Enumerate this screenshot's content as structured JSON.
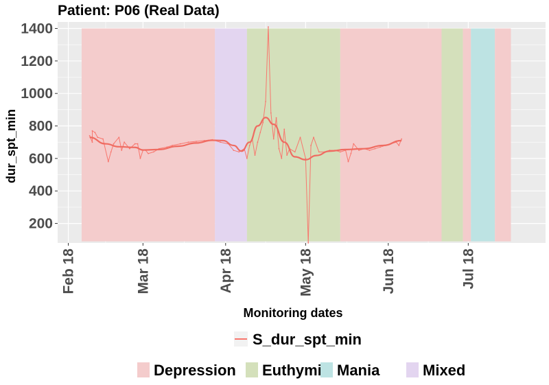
{
  "chart_data": {
    "type": "line",
    "title": "Patient: P06 (Real Data)",
    "xlabel": "Monitoring dates",
    "ylabel": "dur_spt_min",
    "x_axis": "date",
    "xlim": [
      "2018-01-28",
      "2018-07-30"
    ],
    "ylim": [
      80,
      1440
    ],
    "x_ticks": [
      {
        "date": "2018-02-01",
        "label": "Feb 18"
      },
      {
        "date": "2018-03-01",
        "label": "Mar 18"
      },
      {
        "date": "2018-04-01",
        "label": "Apr 18"
      },
      {
        "date": "2018-05-01",
        "label": "May 18"
      },
      {
        "date": "2018-06-01",
        "label": "Jun 18"
      },
      {
        "date": "2018-07-01",
        "label": "Jul 18"
      }
    ],
    "y_ticks": [
      200,
      400,
      600,
      800,
      1000,
      1200,
      1400
    ],
    "grid": true,
    "bands": [
      {
        "state": "Depression",
        "start": "2018-02-06",
        "end": "2018-03-28",
        "ymin": 90,
        "ymax": 1400
      },
      {
        "state": "Mixed",
        "start": "2018-03-28",
        "end": "2018-04-09",
        "ymin": 90,
        "ymax": 1400
      },
      {
        "state": "Euthymia",
        "start": "2018-04-09",
        "end": "2018-05-14",
        "ymin": 90,
        "ymax": 1400
      },
      {
        "state": "Depression",
        "start": "2018-05-14",
        "end": "2018-06-21",
        "ymin": 90,
        "ymax": 1400
      },
      {
        "state": "Euthymia",
        "start": "2018-06-21",
        "end": "2018-06-29",
        "ymin": 90,
        "ymax": 1400
      },
      {
        "state": "Depression",
        "start": "2018-06-29",
        "end": "2018-07-02",
        "ymin": 90,
        "ymax": 1400
      },
      {
        "state": "Mania",
        "start": "2018-07-02",
        "end": "2018-07-11",
        "ymin": 90,
        "ymax": 1400
      },
      {
        "state": "Depression",
        "start": "2018-07-11",
        "end": "2018-07-17",
        "ymin": 90,
        "ymax": 1400
      }
    ],
    "series": [
      {
        "name": "S_dur_spt_min",
        "color": "#f8766d",
        "points": [
          [
            "2018-02-09",
            740
          ],
          [
            "2018-02-10",
            700
          ],
          [
            "2018-02-10",
            770
          ],
          [
            "2018-02-11",
            760
          ],
          [
            "2018-02-12",
            730
          ],
          [
            "2018-02-14",
            720
          ],
          [
            "2018-02-16",
            580
          ],
          [
            "2018-02-17",
            640
          ],
          [
            "2018-02-18",
            690
          ],
          [
            "2018-02-20",
            730
          ],
          [
            "2018-02-21",
            650
          ],
          [
            "2018-02-22",
            700
          ],
          [
            "2018-02-24",
            660
          ],
          [
            "2018-02-26",
            690
          ],
          [
            "2018-02-27",
            690
          ],
          [
            "2018-02-28",
            600
          ],
          [
            "2018-03-01",
            650
          ],
          [
            "2018-03-02",
            650
          ],
          [
            "2018-03-03",
            630
          ],
          [
            "2018-03-05",
            640
          ],
          [
            "2018-03-07",
            660
          ],
          [
            "2018-03-10",
            670
          ],
          [
            "2018-03-12",
            680
          ],
          [
            "2018-03-15",
            690
          ],
          [
            "2018-03-18",
            700
          ],
          [
            "2018-03-21",
            705
          ],
          [
            "2018-03-24",
            710
          ],
          [
            "2018-03-27",
            715
          ],
          [
            "2018-03-30",
            700
          ],
          [
            "2018-04-02",
            690
          ],
          [
            "2018-04-04",
            650
          ],
          [
            "2018-04-06",
            640
          ],
          [
            "2018-04-08",
            660
          ],
          [
            "2018-04-09",
            600
          ],
          [
            "2018-04-10",
            680
          ],
          [
            "2018-04-11",
            720
          ],
          [
            "2018-04-12",
            620
          ],
          [
            "2018-04-13",
            700
          ],
          [
            "2018-04-14",
            760
          ],
          [
            "2018-04-15",
            820
          ],
          [
            "2018-04-16",
            950
          ],
          [
            "2018-04-17",
            1410
          ],
          [
            "2018-04-18",
            880
          ],
          [
            "2018-04-19",
            720
          ],
          [
            "2018-04-20",
            850
          ],
          [
            "2018-04-21",
            660
          ],
          [
            "2018-04-22",
            600
          ],
          [
            "2018-04-23",
            780
          ],
          [
            "2018-04-24",
            620
          ],
          [
            "2018-04-25",
            660
          ],
          [
            "2018-04-27",
            640
          ],
          [
            "2018-04-29",
            730
          ],
          [
            "2018-05-01",
            600
          ],
          [
            "2018-05-02",
            80
          ],
          [
            "2018-05-03",
            680
          ],
          [
            "2018-05-04",
            730
          ],
          [
            "2018-05-06",
            640
          ],
          [
            "2018-05-08",
            640
          ],
          [
            "2018-05-10",
            650
          ],
          [
            "2018-05-12",
            650
          ],
          [
            "2018-05-14",
            640
          ],
          [
            "2018-05-16",
            650
          ],
          [
            "2018-05-17",
            580
          ],
          [
            "2018-05-18",
            630
          ],
          [
            "2018-05-19",
            690
          ],
          [
            "2018-05-21",
            650
          ],
          [
            "2018-05-23",
            660
          ],
          [
            "2018-05-25",
            650
          ],
          [
            "2018-05-27",
            660
          ],
          [
            "2018-05-29",
            670
          ],
          [
            "2018-05-31",
            680
          ],
          [
            "2018-06-02",
            690
          ],
          [
            "2018-06-04",
            700
          ],
          [
            "2018-06-05",
            680
          ],
          [
            "2018-06-06",
            720
          ]
        ],
        "smooth": [
          [
            "2018-02-09",
            730
          ],
          [
            "2018-02-15",
            690
          ],
          [
            "2018-02-20",
            672
          ],
          [
            "2018-02-26",
            668
          ],
          [
            "2018-03-01",
            652
          ],
          [
            "2018-03-07",
            655
          ],
          [
            "2018-03-14",
            675
          ],
          [
            "2018-03-21",
            695
          ],
          [
            "2018-03-27",
            712
          ],
          [
            "2018-03-31",
            710
          ],
          [
            "2018-04-04",
            680
          ],
          [
            "2018-04-07",
            645
          ],
          [
            "2018-04-10",
            700
          ],
          [
            "2018-04-13",
            800
          ],
          [
            "2018-04-16",
            852
          ],
          [
            "2018-04-19",
            810
          ],
          [
            "2018-04-23",
            700
          ],
          [
            "2018-04-27",
            610
          ],
          [
            "2018-05-01",
            592
          ],
          [
            "2018-05-05",
            618
          ],
          [
            "2018-05-10",
            645
          ],
          [
            "2018-05-16",
            655
          ],
          [
            "2018-05-23",
            660
          ],
          [
            "2018-05-30",
            680
          ],
          [
            "2018-06-06",
            710
          ]
        ]
      }
    ],
    "legend": {
      "position": "bottom",
      "line_entry": "S_dur_spt_min",
      "fill_entries": [
        {
          "label": "Depression",
          "color": "#f4cccc"
        },
        {
          "label": "Euthymia",
          "color": "#d4e0bb"
        },
        {
          "label": "Mania",
          "color": "#bde3e3"
        },
        {
          "label": "Mixed",
          "color": "#e3d5f0"
        }
      ]
    },
    "colors": {
      "panel": "#ebebeb",
      "grid": "#ffffff",
      "Depression": "#f4cccc",
      "Euthymia": "#d4e0bb",
      "Mania": "#bde3e3",
      "Mixed": "#e3d5f0",
      "line": "#f8766d",
      "smooth": "#ef6b61"
    }
  }
}
